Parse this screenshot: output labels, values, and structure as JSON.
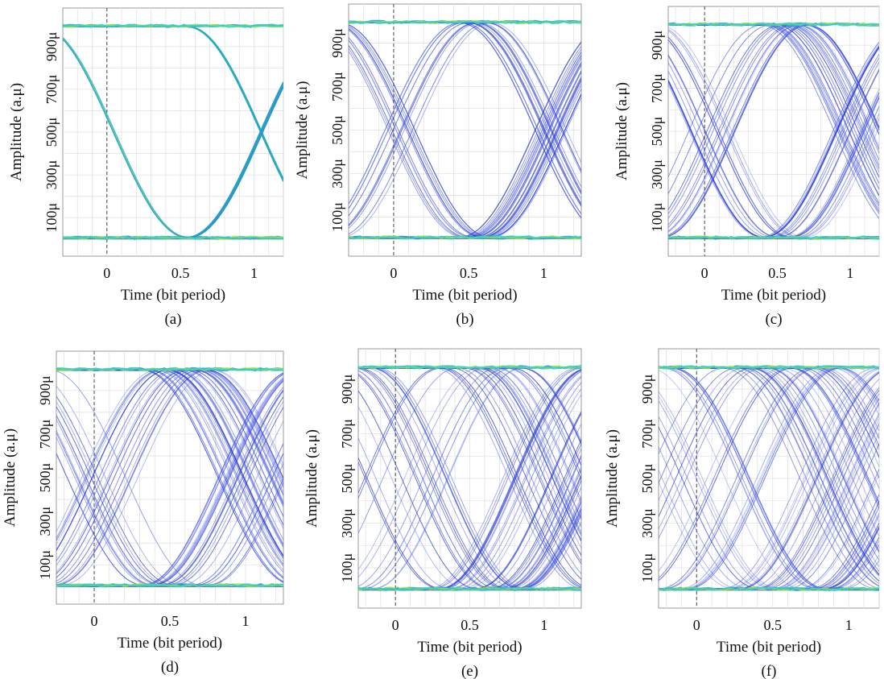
{
  "chart_data": [
    {
      "type": "line",
      "caption": "(a)",
      "xlabel": "Time (bit period)",
      "ylabel": "Amplitude (a.μ)",
      "xticks": [
        "0",
        "0.5",
        "1"
      ],
      "yticks": [
        "100μ",
        "300μ",
        "500μ",
        "700μ",
        "900μ"
      ],
      "xlim": [
        -0.3,
        1.2
      ],
      "ylim": [
        -0.08,
        1.08
      ],
      "x_tick_values": [
        0,
        0.5,
        1
      ],
      "y_tick_values": [
        0.1,
        0.3,
        0.5,
        0.7,
        0.9
      ],
      "crossing_points": [
        0.05,
        1.05
      ],
      "jitter": 0.01,
      "traces": 10,
      "colors": [
        "#2ab5b0",
        "#22a7c4",
        "#2e8fcf",
        "#45c0a0",
        "#90d84a"
      ]
    },
    {
      "type": "line",
      "caption": "(b)",
      "xlabel": "Time (bit period)",
      "ylabel": "Amplitude (a.μ)",
      "xticks": [
        "0",
        "0.5",
        "1"
      ],
      "yticks": [
        "100μ",
        "300μ",
        "500μ",
        "700μ",
        "900μ"
      ],
      "xlim": [
        -0.3,
        1.25
      ],
      "ylim": [
        -0.08,
        1.08
      ],
      "x_tick_values": [
        0,
        0.5,
        1
      ],
      "y_tick_values": [
        0.1,
        0.3,
        0.5,
        0.7,
        0.9
      ],
      "crossing_points": [
        0.05,
        1.05
      ],
      "jitter": 0.11,
      "traces": 44,
      "colors": [
        "#2030d8",
        "#3a4fe0",
        "#5868e8",
        "#1f2fc0"
      ]
    },
    {
      "type": "line",
      "caption": "(c)",
      "xlabel": "Time (bit period)",
      "ylabel": "Amplitude (a.μ)",
      "xticks": [
        "0",
        "0.5",
        "1"
      ],
      "yticks": [
        "100μ",
        "300μ",
        "500μ",
        "700μ",
        "900μ"
      ],
      "xlim": [
        -0.25,
        1.2
      ],
      "ylim": [
        -0.08,
        1.08
      ],
      "x_tick_values": [
        0,
        0.5,
        1
      ],
      "y_tick_values": [
        0.1,
        0.3,
        0.5,
        0.7,
        0.9
      ],
      "crossing_points": [
        0.05,
        1.05
      ],
      "jitter": 0.17,
      "traces": 56,
      "colors": [
        "#2030d8",
        "#3a4fe0",
        "#6878ea",
        "#1f2fc0"
      ]
    },
    {
      "type": "line",
      "caption": "(d)",
      "xlabel": "Time (bit period)",
      "ylabel": "Amplitude (a.μ)",
      "xticks": [
        "0",
        "0.5",
        "1"
      ],
      "yticks": [
        "100μ",
        "300μ",
        "500μ",
        "700μ",
        "900μ"
      ],
      "xlim": [
        -0.25,
        1.25
      ],
      "ylim": [
        -0.08,
        1.08
      ],
      "x_tick_values": [
        0,
        0.5,
        1
      ],
      "y_tick_values": [
        0.1,
        0.3,
        0.5,
        0.7,
        0.9
      ],
      "crossing_points": [
        0.05,
        1.05
      ],
      "jitter": 0.24,
      "traces": 64,
      "colors": [
        "#2030d8",
        "#3a4fe0",
        "#6878ea",
        "#1f2fc0"
      ]
    },
    {
      "type": "line",
      "caption": "(e)",
      "xlabel": "Time (bit period)",
      "ylabel": "Amplitude (a.μ)",
      "xticks": [
        "0",
        "0.5",
        "1"
      ],
      "yticks": [
        "100μ",
        "300μ",
        "500μ",
        "700μ",
        "900μ"
      ],
      "xlim": [
        -0.25,
        1.25
      ],
      "ylim": [
        -0.08,
        1.08
      ],
      "x_tick_values": [
        0,
        0.5,
        1
      ],
      "y_tick_values": [
        0.1,
        0.3,
        0.5,
        0.7,
        0.9
      ],
      "crossing_points": [
        0.05,
        1.05
      ],
      "jitter": 0.33,
      "traces": 70,
      "colors": [
        "#2030d8",
        "#3a4fe0",
        "#6878ea",
        "#1f2fc0"
      ]
    },
    {
      "type": "line",
      "caption": "(f)",
      "xlabel": "Time (bit period)",
      "ylabel": "Amplitude (a.μ)",
      "xticks": [
        "0",
        "0.5",
        "1"
      ],
      "yticks": [
        "100μ",
        "300μ",
        "500μ",
        "700μ",
        "900μ"
      ],
      "xlim": [
        -0.25,
        1.2
      ],
      "ylim": [
        -0.08,
        1.08
      ],
      "x_tick_values": [
        0,
        0.5,
        1
      ],
      "y_tick_values": [
        0.1,
        0.3,
        0.5,
        0.7,
        0.9
      ],
      "crossing_points": [
        0.05,
        1.05
      ],
      "jitter": 0.42,
      "traces": 76,
      "colors": [
        "#2030d8",
        "#3a4fe0",
        "#6878ea",
        "#1f2fc0"
      ]
    }
  ],
  "rail_colors": [
    "#1f8fd0",
    "#3bc0b0",
    "#9ee04a",
    "#2fd0c8"
  ]
}
